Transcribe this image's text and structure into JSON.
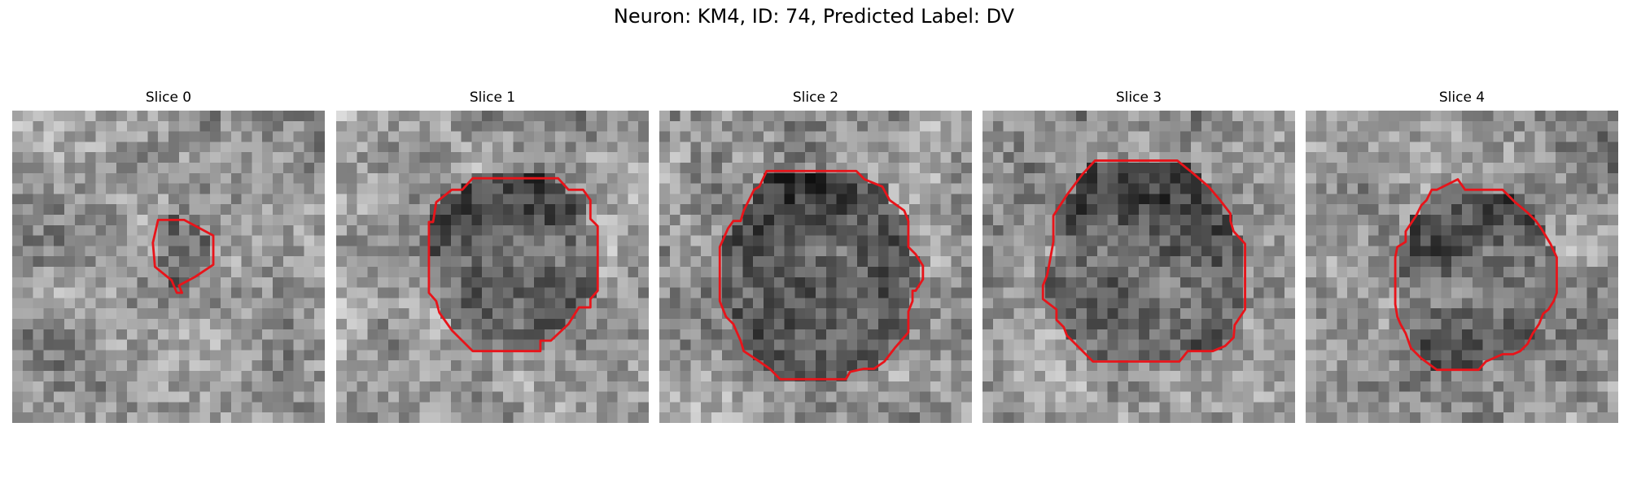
{
  "figure": {
    "title": "Neuron: KM4, ID: 74, Predicted Label: DV",
    "colormap": "gray",
    "contour_color": "#e8141a",
    "grid_size": 30,
    "panels": [
      {
        "title": "Slice 0",
        "contour": [
          [
            14,
            10.5
          ],
          [
            16.5,
            10.5
          ],
          [
            19.3,
            12
          ],
          [
            19.3,
            14.8
          ],
          [
            17.5,
            16
          ],
          [
            16,
            16.8
          ],
          [
            16.3,
            17.5
          ],
          [
            15.8,
            17.5
          ],
          [
            15.3,
            16.3
          ],
          [
            13.7,
            15
          ],
          [
            13.5,
            12.7
          ]
        ]
      },
      {
        "title": "Slice 1",
        "contour": [
          [
            13.1,
            6.5
          ],
          [
            21.3,
            6.5
          ],
          [
            22.3,
            7.6
          ],
          [
            23.7,
            7.6
          ],
          [
            24.4,
            8.6
          ],
          [
            24.4,
            10.4
          ],
          [
            25.1,
            11.1
          ],
          [
            25.1,
            17.3
          ],
          [
            24.4,
            18.1
          ],
          [
            24.4,
            18.9
          ],
          [
            23.3,
            18.9
          ],
          [
            22.3,
            20.5
          ],
          [
            20.6,
            22.1
          ],
          [
            19.6,
            22.1
          ],
          [
            19.6,
            23.1
          ],
          [
            13.1,
            23.1
          ],
          [
            11.1,
            21.1
          ],
          [
            9.9,
            19.4
          ],
          [
            9.6,
            18.3
          ],
          [
            8.9,
            17.5
          ],
          [
            8.9,
            10.7
          ],
          [
            9.3,
            10.7
          ],
          [
            9.6,
            8.8
          ],
          [
            11.1,
            7.6
          ],
          [
            12.1,
            7.6
          ]
        ]
      },
      {
        "title": "Slice 2",
        "contour": [
          [
            10.3,
            5.8
          ],
          [
            18.9,
            5.8
          ],
          [
            19.7,
            6.6
          ],
          [
            21.4,
            7.3
          ],
          [
            22.1,
            8.6
          ],
          [
            23.5,
            9.6
          ],
          [
            23.9,
            10.6
          ],
          [
            23.9,
            13.1
          ],
          [
            24.6,
            13.8
          ],
          [
            25.3,
            14.9
          ],
          [
            25.3,
            16.2
          ],
          [
            24.6,
            17.3
          ],
          [
            24.3,
            17.3
          ],
          [
            24.3,
            18.3
          ],
          [
            23.9,
            19.3
          ],
          [
            23.9,
            21.3
          ],
          [
            22.6,
            22.8
          ],
          [
            21.6,
            24.1
          ],
          [
            20.6,
            24.8
          ],
          [
            19.6,
            24.8
          ],
          [
            18.3,
            25.1
          ],
          [
            17.9,
            25.8
          ],
          [
            11.6,
            25.8
          ],
          [
            10.6,
            24.8
          ],
          [
            9.6,
            24.1
          ],
          [
            8.1,
            23.1
          ],
          [
            7.8,
            22.1
          ],
          [
            7.1,
            20.5
          ],
          [
            6.4,
            19.8
          ],
          [
            5.8,
            18.3
          ],
          [
            5.8,
            13.1
          ],
          [
            6.6,
            11.3
          ],
          [
            7.1,
            10.6
          ],
          [
            7.8,
            10.6
          ],
          [
            8.1,
            9.6
          ],
          [
            9.1,
            7.6
          ],
          [
            9.6,
            7.3
          ]
        ]
      },
      {
        "title": "Slice 3",
        "contour": [
          [
            10.8,
            4.8
          ],
          [
            18.7,
            4.8
          ],
          [
            20.3,
            6.1
          ],
          [
            21.7,
            7.3
          ],
          [
            22.8,
            8.6
          ],
          [
            23.8,
            9.9
          ],
          [
            23.8,
            10.6
          ],
          [
            24.1,
            11.6
          ],
          [
            25.2,
            12.8
          ],
          [
            25.2,
            19.1
          ],
          [
            24.2,
            20.6
          ],
          [
            24.1,
            21.8
          ],
          [
            23.3,
            22.6
          ],
          [
            22.1,
            23.1
          ],
          [
            19.7,
            23.1
          ],
          [
            18.9,
            24.1
          ],
          [
            10.6,
            24.1
          ],
          [
            9.6,
            23.1
          ],
          [
            8.1,
            21.6
          ],
          [
            7.8,
            20.8
          ],
          [
            7.1,
            20.1
          ],
          [
            7.1,
            19.1
          ],
          [
            5.8,
            18.1
          ],
          [
            5.8,
            16.8
          ],
          [
            6.2,
            15.8
          ],
          [
            6.4,
            14.8
          ],
          [
            6.8,
            12.6
          ],
          [
            6.8,
            10.1
          ],
          [
            8.1,
            8.1
          ],
          [
            9.6,
            6.1
          ]
        ]
      },
      {
        "title": "Slice 4",
        "contour": [
          [
            12.6,
            7.6
          ],
          [
            14.6,
            6.6
          ],
          [
            15.3,
            7.6
          ],
          [
            18.9,
            7.6
          ],
          [
            20.1,
            8.8
          ],
          [
            21.3,
            9.8
          ],
          [
            22.1,
            10.6
          ],
          [
            22.6,
            11.3
          ],
          [
            23.5,
            12.8
          ],
          [
            24.1,
            14.1
          ],
          [
            24.1,
            17.5
          ],
          [
            23.8,
            18.3
          ],
          [
            23.3,
            19.1
          ],
          [
            22.8,
            19.5
          ],
          [
            22.4,
            20.5
          ],
          [
            21.8,
            21.4
          ],
          [
            21.3,
            22.4
          ],
          [
            20.6,
            23.1
          ],
          [
            19.9,
            23.4
          ],
          [
            18.9,
            23.4
          ],
          [
            17.3,
            24.1
          ],
          [
            16.6,
            24.9
          ],
          [
            12.6,
            24.9
          ],
          [
            11.1,
            23.8
          ],
          [
            10.1,
            22.8
          ],
          [
            9.6,
            21.4
          ],
          [
            9.1,
            20.5
          ],
          [
            8.8,
            19.8
          ],
          [
            8.6,
            18.6
          ],
          [
            8.6,
            14.1
          ],
          [
            8.8,
            13.1
          ],
          [
            9.6,
            12.6
          ],
          [
            9.6,
            11.6
          ],
          [
            10.6,
            10.1
          ],
          [
            11.1,
            9.1
          ],
          [
            11.6,
            8.6
          ],
          [
            12.1,
            7.6
          ]
        ]
      }
    ]
  }
}
